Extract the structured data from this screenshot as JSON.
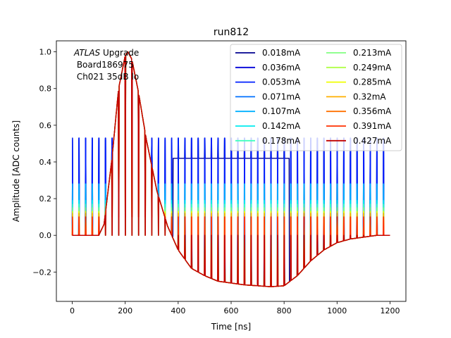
{
  "chart_data": {
    "type": "line",
    "title": "run812",
    "xlabel": "Time [ns]",
    "ylabel": "Amplitude [ADC counts]",
    "xlim": [
      -60,
      1260
    ],
    "ylim": [
      -0.36,
      1.06
    ],
    "xticks": [
      0,
      200,
      400,
      600,
      800,
      1000,
      1200
    ],
    "yticks": [
      -0.2,
      0.0,
      0.2,
      0.4,
      0.6,
      0.8,
      1.0
    ],
    "xtick_labels": [
      "0",
      "200",
      "400",
      "600",
      "800",
      "1000",
      "1200"
    ],
    "ytick_labels": [
      "−0.2",
      "0.0",
      "0.2",
      "0.4",
      "0.6",
      "0.8",
      "1.0"
    ],
    "grid": false,
    "legend_position": "top-right",
    "legend_columns": 2,
    "annotation": {
      "atlas": "ATLAS",
      "upgrade": " Upgrade",
      "board": " Board186975",
      "channel": " Ch021 35dB lo"
    },
    "shape": {
      "description": "Normalized pulse shape shared by all currents (peak ~1.0 at ~210 ns, undershoot ~-0.28 near 780 ns)",
      "x": [
        0,
        100,
        120,
        150,
        175,
        200,
        210,
        225,
        250,
        280,
        320,
        360,
        400,
        450,
        500,
        550,
        600,
        650,
        700,
        750,
        800,
        850,
        900,
        950,
        1000,
        1050,
        1100,
        1150,
        1200
      ],
      "y": [
        0.0,
        0.0,
        0.06,
        0.42,
        0.8,
        0.98,
        1.0,
        0.96,
        0.78,
        0.52,
        0.24,
        0.05,
        -0.08,
        -0.18,
        -0.22,
        -0.25,
        -0.26,
        -0.27,
        -0.275,
        -0.28,
        -0.275,
        -0.22,
        -0.14,
        -0.08,
        -0.04,
        -0.02,
        -0.01,
        0.0,
        0.0
      ]
    },
    "series": [
      {
        "name": "0.018mA",
        "color": "#00008f",
        "baseline": 0.53,
        "width": 1.4
      },
      {
        "name": "0.036mA",
        "color": "#0000d8",
        "baseline": 0.52,
        "width": 1.4
      },
      {
        "name": "0.053mA",
        "color": "#0020ff",
        "baseline": 0.53,
        "width": 1.4
      },
      {
        "name": "0.071mA",
        "color": "#0070ff",
        "baseline": 0.28,
        "width": 1.4
      },
      {
        "name": "0.107mA",
        "color": "#00b0ff",
        "baseline": 0.28,
        "width": 1.4
      },
      {
        "name": "0.142mA",
        "color": "#00ecef",
        "baseline": 0.19,
        "width": 1.4
      },
      {
        "name": "0.178mA",
        "color": "#40ffbf",
        "baseline": 0.17,
        "width": 1.4
      },
      {
        "name": "0.213mA",
        "color": "#80ff80",
        "baseline": 0.15,
        "width": 1.4
      },
      {
        "name": "0.249mA",
        "color": "#b0ff46",
        "baseline": 0.0,
        "width": 1.4
      },
      {
        "name": "0.285mA",
        "color": "#f0ff00",
        "baseline": 0.13,
        "width": 1.4
      },
      {
        "name": "0.32mA",
        "color": "#ffb000",
        "baseline": 0.12,
        "width": 1.4
      },
      {
        "name": "0.356mA",
        "color": "#ff7000",
        "baseline": 0.1,
        "width": 1.4
      },
      {
        "name": "0.391mA",
        "color": "#ff3000",
        "baseline": 0.1,
        "width": 1.4
      },
      {
        "name": "0.427mA",
        "color": "#c00000",
        "baseline": 0.0,
        "width": 1.4
      }
    ],
    "comb_spacing_ns": 25
  }
}
